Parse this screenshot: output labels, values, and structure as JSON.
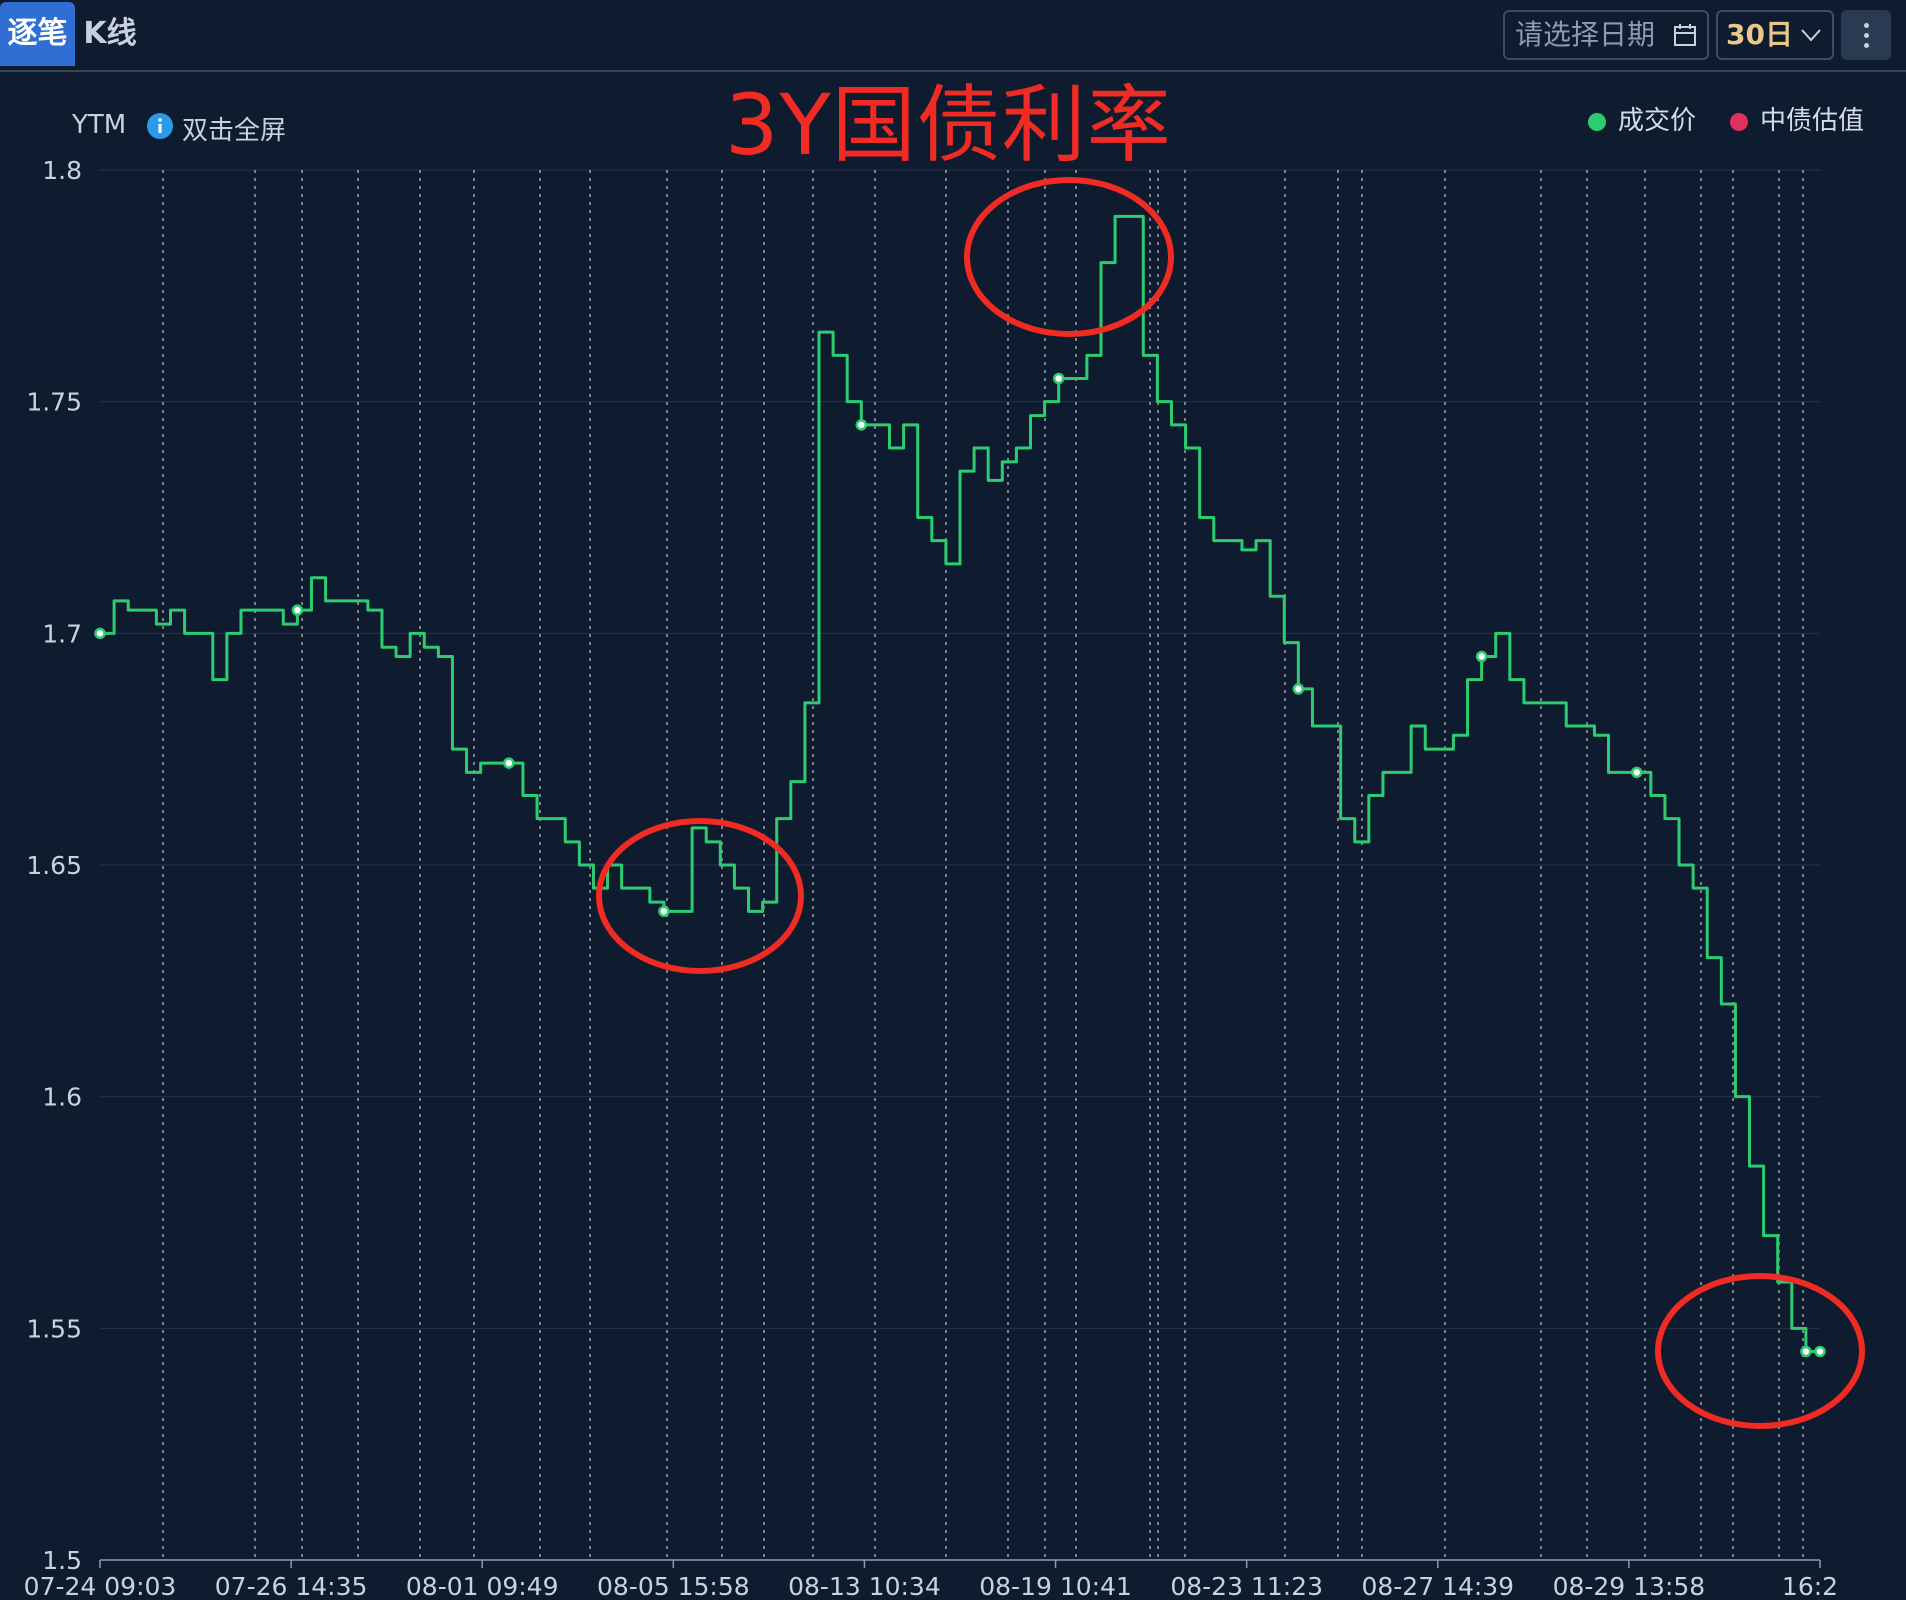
{
  "tabs": [
    {
      "label": "逐笔"
    },
    {
      "label": "K线"
    }
  ],
  "date_picker": {
    "placeholder": "请选择日期",
    "icon": "calendar-icon"
  },
  "range_select": {
    "value": "30日",
    "icon": "chevron-down-icon"
  },
  "more_menu": {
    "icon": "more-vertical-icon"
  },
  "y_axis_title": "YTM",
  "fullscreen_hint": "双击全屏",
  "annotation_title": "3Y国债利率",
  "colors": {
    "series_trade": "#2ecc71",
    "series_valuation": "#e0305e",
    "annotation": "#ef2b23",
    "background": "#0f1b2e"
  },
  "chart_data": {
    "type": "line",
    "title": "",
    "xlabel": "",
    "ylabel": "YTM",
    "ylim": [
      1.5,
      1.8
    ],
    "yticks": [
      "1.5",
      "1.55",
      "1.6",
      "1.65",
      "1.7",
      "1.75",
      "1.8"
    ],
    "xticks": [
      "07-24 09:03",
      "07-26 14:35",
      "08-01 09:49",
      "08-05 15:58",
      "08-13 10:34",
      "08-19 10:41",
      "08-23 11:23",
      "08-27 14:39",
      "08-29 13:58",
      "16:2"
    ],
    "legend": [
      "成交价",
      "中债估值"
    ],
    "legend_position": "top-right",
    "grid": "vertical dotted separators",
    "series": [
      {
        "name": "成交价",
        "values": [
          1.7,
          1.707,
          1.705,
          1.705,
          1.702,
          1.705,
          1.7,
          1.7,
          1.69,
          1.7,
          1.705,
          1.705,
          1.705,
          1.702,
          1.705,
          1.712,
          1.707,
          1.707,
          1.707,
          1.705,
          1.697,
          1.695,
          1.7,
          1.697,
          1.695,
          1.675,
          1.67,
          1.672,
          1.672,
          1.672,
          1.665,
          1.66,
          1.66,
          1.655,
          1.65,
          1.645,
          1.65,
          1.645,
          1.645,
          1.642,
          1.64,
          1.64,
          1.658,
          1.655,
          1.65,
          1.645,
          1.64,
          1.642,
          1.66,
          1.668,
          1.685,
          1.765,
          1.76,
          1.75,
          1.745,
          1.745,
          1.74,
          1.745,
          1.725,
          1.72,
          1.715,
          1.735,
          1.74,
          1.733,
          1.737,
          1.74,
          1.747,
          1.75,
          1.755,
          1.755,
          1.76,
          1.78,
          1.79,
          1.79,
          1.76,
          1.75,
          1.745,
          1.74,
          1.725,
          1.72,
          1.72,
          1.718,
          1.72,
          1.708,
          1.698,
          1.688,
          1.68,
          1.68,
          1.66,
          1.655,
          1.665,
          1.67,
          1.67,
          1.68,
          1.675,
          1.675,
          1.678,
          1.69,
          1.695,
          1.7,
          1.69,
          1.685,
          1.685,
          1.685,
          1.68,
          1.68,
          1.678,
          1.67,
          1.67,
          1.67,
          1.665,
          1.66,
          1.65,
          1.645,
          1.63,
          1.62,
          1.6,
          1.585,
          1.57,
          1.56,
          1.55,
          1.545,
          1.545
        ]
      },
      {
        "name": "中债估值",
        "values": []
      }
    ]
  }
}
